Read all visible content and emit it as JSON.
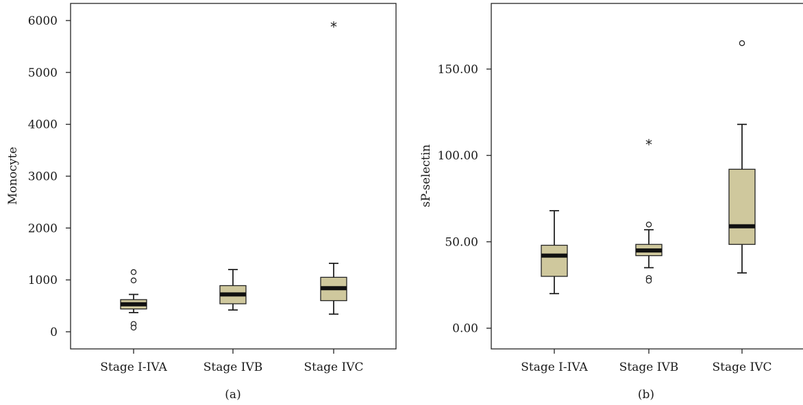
{
  "colors": {
    "box_fill": "#cfc89d",
    "line": "#222222"
  },
  "chart_data": [
    {
      "type": "box",
      "panel_label": "(a)",
      "ylabel": "Monocyte",
      "xlabel": "",
      "ylim": [
        -330,
        6330
      ],
      "yticks": [
        0,
        1000,
        2000,
        3000,
        4000,
        5000,
        6000
      ],
      "ytick_labels": [
        "0",
        "1000",
        "2000",
        "3000",
        "4000",
        "5000",
        "6000"
      ],
      "categories": [
        "Stage I-IVA",
        "Stage IVB",
        "Stage IVC"
      ],
      "boxes": [
        {
          "category": "Stage I-IVA",
          "whisker_low": 370,
          "q1": 440,
          "median": 530,
          "q3": 620,
          "whisker_high": 720,
          "outliers": [
            {
              "value": 1150,
              "marker": "circle"
            },
            {
              "value": 990,
              "marker": "circle"
            },
            {
              "value": 150,
              "marker": "circle"
            },
            {
              "value": 80,
              "marker": "circle"
            }
          ]
        },
        {
          "category": "Stage IVB",
          "whisker_low": 420,
          "q1": 540,
          "median": 720,
          "q3": 890,
          "whisker_high": 1200,
          "outliers": []
        },
        {
          "category": "Stage IVC",
          "whisker_low": 340,
          "q1": 600,
          "median": 840,
          "q3": 1050,
          "whisker_high": 1320,
          "outliers": [
            {
              "value": 5900,
              "marker": "star"
            }
          ]
        }
      ]
    },
    {
      "type": "box",
      "panel_label": "(b)",
      "ylabel": "sP-selectin",
      "xlabel": "",
      "ylim": [
        -12,
        188
      ],
      "yticks": [
        0,
        50,
        100,
        150
      ],
      "ytick_labels": [
        "0.00",
        "50.00",
        "100.00",
        "150.00"
      ],
      "categories": [
        "Stage I-IVA",
        "Stage IVB",
        "Stage IVC"
      ],
      "boxes": [
        {
          "category": "Stage I-IVA",
          "whisker_low": 20,
          "q1": 30,
          "median": 42,
          "q3": 48,
          "whisker_high": 68,
          "outliers": []
        },
        {
          "category": "Stage IVB",
          "whisker_low": 35,
          "q1": 42,
          "median": 45,
          "q3": 48.5,
          "whisker_high": 57,
          "outliers": [
            {
              "value": 107,
              "marker": "star"
            },
            {
              "value": 60,
              "marker": "circle"
            },
            {
              "value": 29,
              "marker": "circle"
            },
            {
              "value": 27.5,
              "marker": "circle"
            }
          ]
        },
        {
          "category": "Stage IVC",
          "whisker_low": 32,
          "q1": 48.5,
          "median": 59,
          "q3": 92,
          "whisker_high": 118,
          "outliers": [
            {
              "value": 165,
              "marker": "circle"
            }
          ]
        }
      ]
    }
  ]
}
